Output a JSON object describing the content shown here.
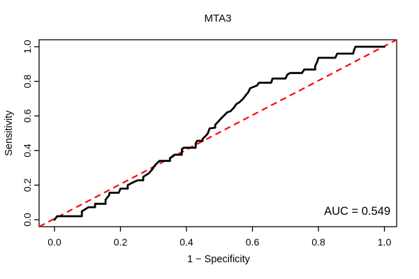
{
  "title": "MTA3",
  "axes": {
    "xlabel": "1 − Specificity",
    "ylabel": "Sensitivity",
    "x_tick_labels": [
      "0.0",
      "0.2",
      "0.4",
      "0.6",
      "0.8",
      "1.0"
    ],
    "y_tick_labels": [
      "0.0",
      "0.2",
      "0.4",
      "0.6",
      "0.8",
      "1.0"
    ]
  },
  "annotation": {
    "auc_label": "AUC = 0.549"
  },
  "colors": {
    "roc_curve": "#000000",
    "diagonal": "#FF0000",
    "box": "#000000",
    "text": "#000000",
    "background": "#FFFFFF"
  },
  "chart_data": {
    "type": "line",
    "title": "MTA3",
    "xlabel": "1 − Specificity",
    "ylabel": "Sensitivity",
    "xlim": [
      0,
      1
    ],
    "ylim": [
      0,
      1
    ],
    "x_ticks": [
      0,
      0.2,
      0.4,
      0.6,
      0.8,
      1.0
    ],
    "y_ticks": [
      0,
      0.2,
      0.4,
      0.6,
      0.8,
      1.0
    ],
    "grid": false,
    "auc": 0.549,
    "series": [
      {
        "name": "ROC curve",
        "style": "solid-step",
        "color": "#000000",
        "points": [
          [
            0.0,
            0.0
          ],
          [
            0.004,
            0.01
          ],
          [
            0.008,
            0.02
          ],
          [
            0.083,
            0.02
          ],
          [
            0.083,
            0.048
          ],
          [
            0.093,
            0.06
          ],
          [
            0.103,
            0.072
          ],
          [
            0.123,
            0.072
          ],
          [
            0.123,
            0.092
          ],
          [
            0.155,
            0.092
          ],
          [
            0.155,
            0.116
          ],
          [
            0.165,
            0.14
          ],
          [
            0.167,
            0.156
          ],
          [
            0.195,
            0.156
          ],
          [
            0.2,
            0.18
          ],
          [
            0.222,
            0.18
          ],
          [
            0.222,
            0.2
          ],
          [
            0.237,
            0.215
          ],
          [
            0.252,
            0.228
          ],
          [
            0.269,
            0.228
          ],
          [
            0.269,
            0.248
          ],
          [
            0.286,
            0.268
          ],
          [
            0.296,
            0.29
          ],
          [
            0.305,
            0.316
          ],
          [
            0.316,
            0.336
          ],
          [
            0.318,
            0.34
          ],
          [
            0.35,
            0.34
          ],
          [
            0.35,
            0.356
          ],
          [
            0.364,
            0.376
          ],
          [
            0.386,
            0.376
          ],
          [
            0.386,
            0.408
          ],
          [
            0.392,
            0.416
          ],
          [
            0.428,
            0.416
          ],
          [
            0.428,
            0.44
          ],
          [
            0.432,
            0.456
          ],
          [
            0.449,
            0.456
          ],
          [
            0.449,
            0.468
          ],
          [
            0.46,
            0.488
          ],
          [
            0.465,
            0.5
          ],
          [
            0.47,
            0.528
          ],
          [
            0.487,
            0.532
          ],
          [
            0.487,
            0.548
          ],
          [
            0.497,
            0.568
          ],
          [
            0.506,
            0.588
          ],
          [
            0.517,
            0.608
          ],
          [
            0.523,
            0.62
          ],
          [
            0.534,
            0.628
          ],
          [
            0.544,
            0.648
          ],
          [
            0.551,
            0.668
          ],
          [
            0.561,
            0.68
          ],
          [
            0.572,
            0.7
          ],
          [
            0.58,
            0.72
          ],
          [
            0.587,
            0.736
          ],
          [
            0.593,
            0.76
          ],
          [
            0.614,
            0.776
          ],
          [
            0.62,
            0.792
          ],
          [
            0.657,
            0.792
          ],
          [
            0.661,
            0.816
          ],
          [
            0.7,
            0.816
          ],
          [
            0.706,
            0.84
          ],
          [
            0.714,
            0.848
          ],
          [
            0.75,
            0.848
          ],
          [
            0.757,
            0.868
          ],
          [
            0.79,
            0.868
          ],
          [
            0.79,
            0.888
          ],
          [
            0.796,
            0.912
          ],
          [
            0.8,
            0.936
          ],
          [
            0.851,
            0.936
          ],
          [
            0.857,
            0.96
          ],
          [
            0.905,
            0.96
          ],
          [
            0.908,
            0.98
          ],
          [
            0.912,
            1.0
          ],
          [
            1.0,
            1.0
          ]
        ]
      },
      {
        "name": "chance diagonal",
        "style": "dashed",
        "color": "#FF0000",
        "points": [
          [
            0,
            0
          ],
          [
            1,
            1
          ]
        ]
      }
    ]
  }
}
